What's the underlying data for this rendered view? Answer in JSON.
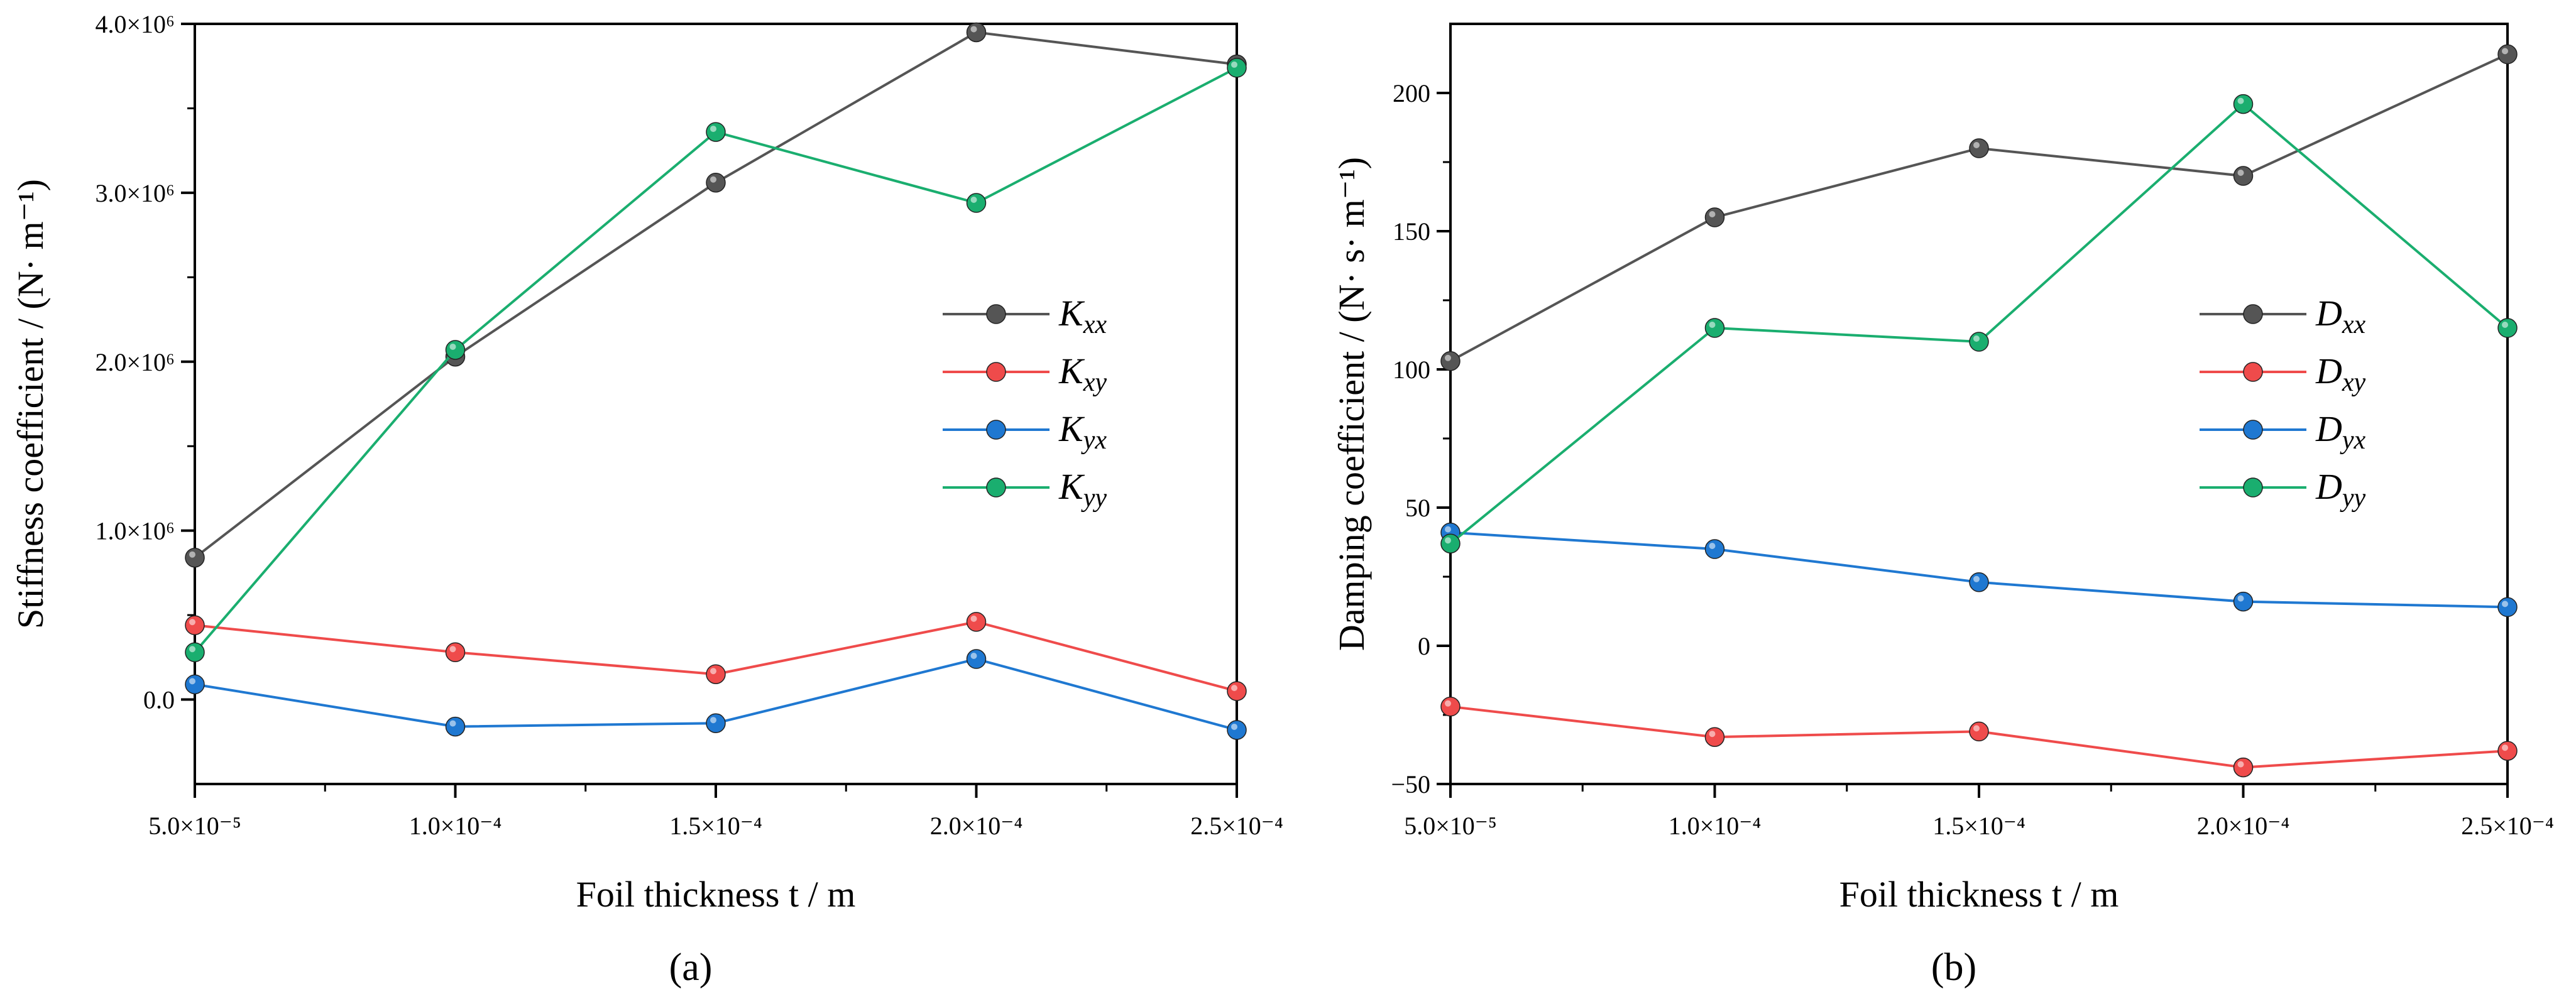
{
  "chart_data": [
    {
      "type": "line",
      "panel_label": "(a)",
      "xlabel": "Foil thickness t / m",
      "ylabel": "Stiffness coefficient / (N· m⁻¹)",
      "x": [
        5e-05,
        0.0001,
        0.00015,
        0.0002,
        0.00025
      ],
      "x_tick_values": [
        5e-05,
        0.0001,
        0.00015,
        0.0002,
        0.00025
      ],
      "x_tick_labels": [
        "5.0×10⁻⁵",
        "1.0×10⁻⁴",
        "1.5×10⁻⁴",
        "2.0×10⁻⁴",
        "2.5×10⁻⁴"
      ],
      "y_tick_values": [
        0,
        1000000,
        2000000,
        3000000,
        4000000
      ],
      "y_tick_labels": [
        "0.0",
        "1.0×10⁶",
        "2.0×10⁶",
        "3.0×10⁶",
        "4.0×10⁶"
      ],
      "xlim": [
        5e-05,
        0.00025
      ],
      "ylim": [
        -500000,
        4000000
      ],
      "legend_position": "center-right",
      "series": [
        {
          "name": "Kxx",
          "base": "K",
          "sub": "xx",
          "color": "#555555",
          "values": [
            840000,
            2030000,
            3060000,
            3950000,
            3760000
          ]
        },
        {
          "name": "Kxy",
          "base": "K",
          "sub": "xy",
          "color": "#ef4b4b",
          "values": [
            440000,
            280000,
            150000,
            460000,
            50000
          ]
        },
        {
          "name": "Kyx",
          "base": "K",
          "sub": "yx",
          "color": "#1f78d1",
          "values": [
            90000,
            -160000,
            -140000,
            240000,
            -180000
          ]
        },
        {
          "name": "Kyy",
          "base": "K",
          "sub": "yy",
          "color": "#1aae6f",
          "values": [
            280000,
            2070000,
            3360000,
            2940000,
            3740000
          ]
        }
      ]
    },
    {
      "type": "line",
      "panel_label": "(b)",
      "xlabel": "Foil thickness t / m",
      "ylabel": "Damping coefficient / (N· s· m⁻¹)",
      "x": [
        5e-05,
        0.0001,
        0.00015,
        0.0002,
        0.00025
      ],
      "x_tick_values": [
        5e-05,
        0.0001,
        0.00015,
        0.0002,
        0.00025
      ],
      "x_tick_labels": [
        "5.0×10⁻⁵",
        "1.0×10⁻⁴",
        "1.5×10⁻⁴",
        "2.0×10⁻⁴",
        "2.5×10⁻⁴"
      ],
      "y_tick_values": [
        -50,
        0,
        50,
        100,
        150,
        200
      ],
      "y_tick_labels": [
        "−50",
        "0",
        "50",
        "100",
        "150",
        "200"
      ],
      "xlim": [
        5e-05,
        0.00025
      ],
      "ylim": [
        -50,
        225
      ],
      "legend_position": "upper-right",
      "series": [
        {
          "name": "Dxx",
          "base": "D",
          "sub": "xx",
          "color": "#555555",
          "values": [
            103,
            155,
            180,
            170,
            214
          ]
        },
        {
          "name": "Dxy",
          "base": "D",
          "sub": "xy",
          "color": "#ef4b4b",
          "values": [
            -22,
            -33,
            -31,
            -44,
            -38
          ]
        },
        {
          "name": "Dyx",
          "base": "D",
          "sub": "yx",
          "color": "#1f78d1",
          "values": [
            41,
            35,
            23,
            16,
            14
          ]
        },
        {
          "name": "Dyy",
          "base": "D",
          "sub": "yy",
          "color": "#1aae6f",
          "values": [
            37,
            115,
            110,
            196,
            115
          ]
        }
      ]
    }
  ]
}
